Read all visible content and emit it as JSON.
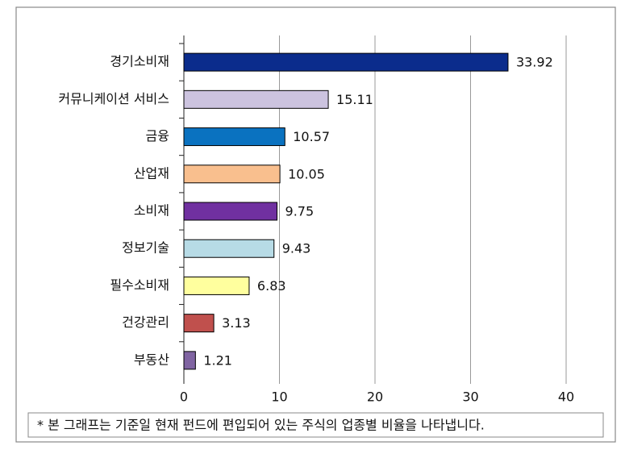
{
  "chart_data": {
    "type": "bar",
    "orientation": "horizontal",
    "categories": [
      "경기소비재",
      "커뮤니케이션 서비스",
      "금융",
      "산업재",
      "소비재",
      "정보기술",
      "필수소비재",
      "건강관리",
      "부동산"
    ],
    "values": [
      33.92,
      15.11,
      10.57,
      10.05,
      9.75,
      9.43,
      6.83,
      3.13,
      1.21
    ],
    "colors": [
      "#0b2c8c",
      "#ccc3df",
      "#0a72c0",
      "#f9bf8e",
      "#7030a0",
      "#b7dbe6",
      "#ffff9e",
      "#c0504d",
      "#8064a2"
    ],
    "xlim": [
      0,
      40
    ],
    "xticks": [
      0,
      10,
      20,
      30,
      40
    ],
    "grid": true,
    "footnote": "* 본 그래프는 기준일 현재 펀드에 편입되어 있는 주식의 업종별 비율을 나타냅니다."
  }
}
